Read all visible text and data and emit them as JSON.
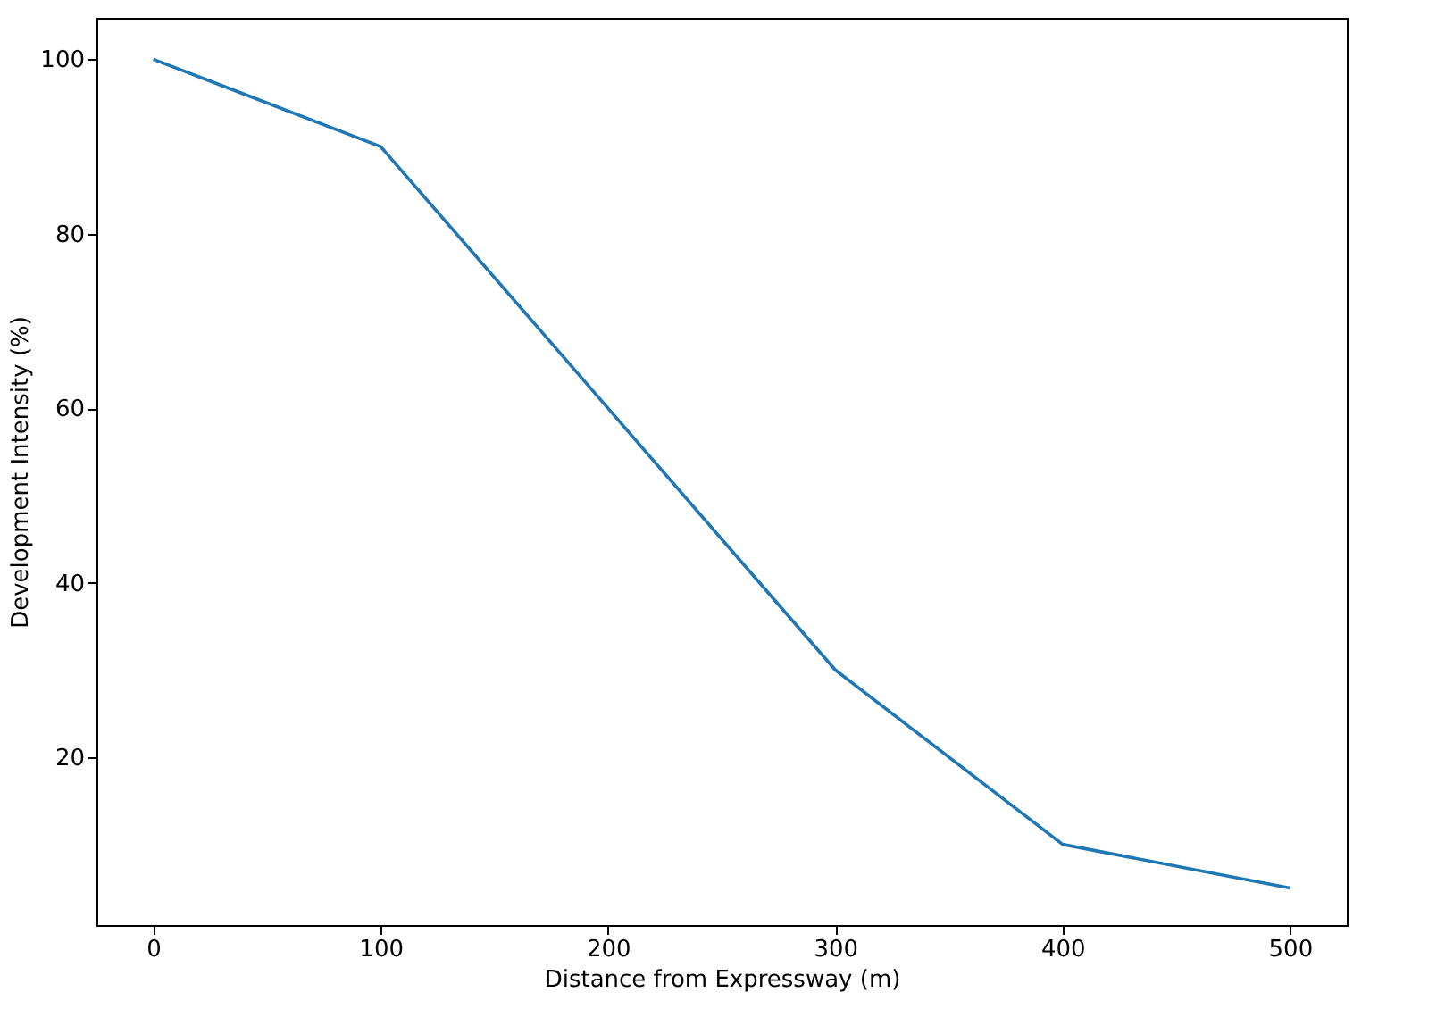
{
  "chart_data": {
    "type": "line",
    "xlabel": "Distance from Expressway (m)",
    "ylabel": "Development Intensity (%)",
    "x": [
      0,
      100,
      200,
      300,
      400,
      500
    ],
    "series": [
      {
        "color": "#1f77b4",
        "values": [
          100,
          90,
          60,
          30,
          10,
          5
        ]
      }
    ],
    "xlim": [
      -25,
      525
    ],
    "ylim": [
      0.75,
      104.75
    ],
    "xticks": [
      0,
      100,
      200,
      300,
      400,
      500
    ],
    "yticks": [
      20,
      40,
      60,
      80,
      100
    ],
    "grid": false,
    "marker": "none",
    "line_style": "solid"
  }
}
